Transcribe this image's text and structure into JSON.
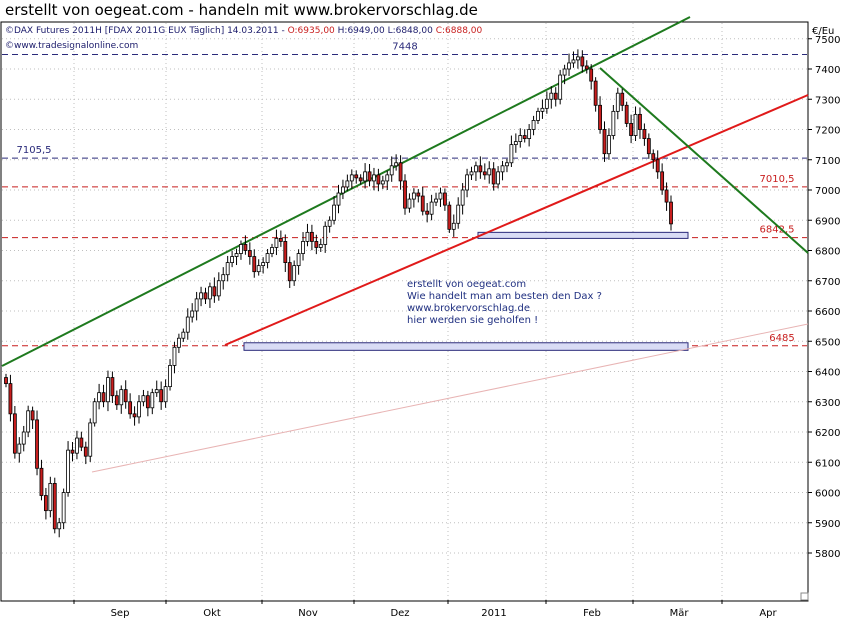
{
  "title": "erstellt von oegeat.com - handeln mit www.brokervorschlag.de",
  "header": {
    "line1_prefix": "DAX Futures 2011H [FDAX 2011G EUX  Täglich] 14.03.2011 - ",
    "o": "O:6935,00",
    "h": "H:6949,00",
    "l": "L:6848,00",
    "c": "C:6888,00",
    "line2": "www.tradesignalonline.com",
    "copyright_symbol": "©"
  },
  "colors": {
    "up": "#ffffff",
    "down": "#c81e1e",
    "channel": "#1e7a1e",
    "support": "#e01a1a",
    "blue_dash": "#2a2a7a",
    "red_dash": "#c81e1e",
    "grid": "#bfbfbf",
    "box_fill": "#d9dcf5",
    "note_text": "#1f2f80"
  },
  "annotation": {
    "lines": [
      "erstellt von oegeat.com",
      "Wie handelt man am besten den Dax ?",
      "www.brokervorschlag.de",
      "hier werden sie geholfen !"
    ]
  },
  "chart_data": {
    "type": "candlestick",
    "title": "erstellt von oegeat.com - handeln mit www.brokervorschlag.de",
    "ylabel": "€/Eu",
    "ylim": [
      5680,
      7560
    ],
    "y_ticks": [
      5800,
      5900,
      6000,
      6100,
      6200,
      6300,
      6400,
      6500,
      6600,
      6700,
      6800,
      6900,
      7000,
      7100,
      7200,
      7300,
      7400,
      7500
    ],
    "x_ticks": [
      "Sep",
      "Okt",
      "Nov",
      "Dez",
      "2011",
      "Feb",
      "Mär",
      "Apr"
    ],
    "grid": true,
    "levels": [
      {
        "label": "7448",
        "value": 7448,
        "color": "blue"
      },
      {
        "label": "7105,5",
        "value": 7105.5,
        "color": "blue"
      },
      {
        "label": "7010,5",
        "value": 7010.5,
        "color": "red"
      },
      {
        "label": "6842,5",
        "value": 6842.5,
        "color": "red"
      },
      {
        "label": "6485",
        "value": 6485,
        "color": "red"
      }
    ],
    "closes": [
      6360,
      6260,
      6130,
      6160,
      6200,
      6270,
      6240,
      6080,
      5990,
      5940,
      6030,
      5880,
      5900,
      6000,
      6140,
      6130,
      6180,
      6150,
      6120,
      6230,
      6300,
      6330,
      6300,
      6380,
      6320,
      6290,
      6340,
      6300,
      6260,
      6250,
      6300,
      6320,
      6280,
      6330,
      6340,
      6300,
      6350,
      6420,
      6480,
      6510,
      6530,
      6580,
      6600,
      6640,
      6660,
      6640,
      6680,
      6650,
      6700,
      6720,
      6760,
      6780,
      6790,
      6820,
      6800,
      6780,
      6730,
      6750,
      6760,
      6790,
      6810,
      6840,
      6830,
      6760,
      6700,
      6750,
      6790,
      6830,
      6860,
      6830,
      6810,
      6820,
      6880,
      6900,
      6950,
      6990,
      7010,
      7030,
      7050,
      7040,
      7030,
      7060,
      7030,
      7050,
      7020,
      7030,
      7050,
      7080,
      7090,
      7030,
      6940,
      6970,
      6990,
      6980,
      6930,
      6920,
      6960,
      6970,
      6990,
      6950,
      6870,
      6890,
      6950,
      7000,
      7050,
      7060,
      7080,
      7060,
      7050,
      7070,
      7020,
      7060,
      7080,
      7090,
      7150,
      7160,
      7180,
      7170,
      7200,
      7230,
      7260,
      7270,
      7300,
      7320,
      7300,
      7380,
      7400,
      7420,
      7430,
      7440,
      7410,
      7400,
      7360,
      7280,
      7200,
      7120,
      7180,
      7260,
      7320,
      7280,
      7220,
      7180,
      7250,
      7200,
      7170,
      7120,
      7100,
      7060,
      7000,
      6960,
      6888
    ]
  }
}
